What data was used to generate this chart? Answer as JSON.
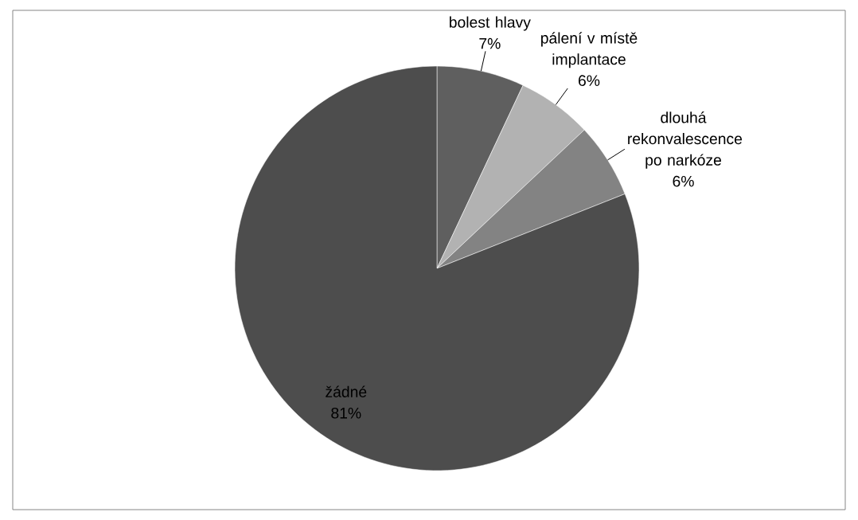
{
  "chart_data": {
    "type": "pie",
    "categories": [
      "bolest hlavy",
      "pálení v místě implantace",
      "dlouhá rekonvalescence po narkóze",
      "žádné"
    ],
    "values": [
      7,
      6,
      6,
      81
    ],
    "value_labels": [
      "7%",
      "6%",
      "6%",
      "81%"
    ],
    "colors": [
      "#5f5f5f",
      "#b2b2b2",
      "#838383",
      "#4d4d4d"
    ]
  }
}
